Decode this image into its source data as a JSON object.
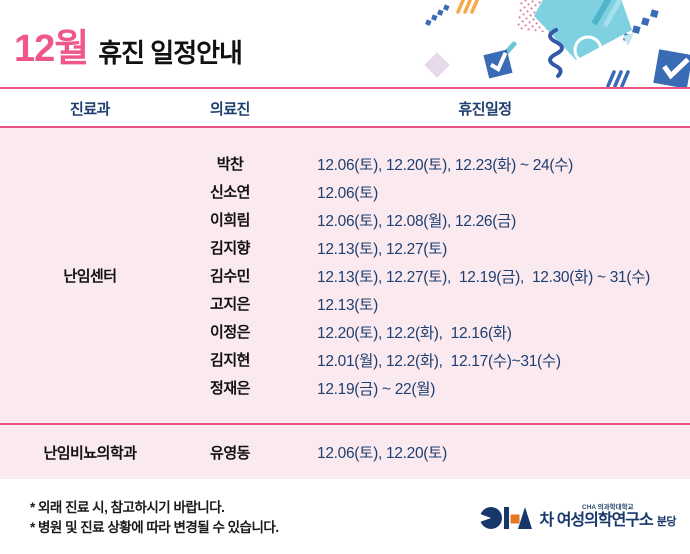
{
  "title": {
    "month": "12월",
    "rest": "휴진 일정안내"
  },
  "table": {
    "headers": {
      "department": "진료과",
      "staff": "의료진",
      "schedule": "휴진일정"
    },
    "sections": [
      {
        "department": "난임센터",
        "rows": [
          {
            "doctor": "박찬",
            "schedule": "12.06(토), 12.20(토), 12.23(화) ~ 24(수)"
          },
          {
            "doctor": "신소연",
            "schedule": "12.06(토)"
          },
          {
            "doctor": "이희림",
            "schedule": "12.06(토), 12.08(월), 12.26(금)"
          },
          {
            "doctor": "김지향",
            "schedule": "12.13(토), 12.27(토)"
          },
          {
            "doctor": "김수민",
            "schedule": "12.13(토), 12.27(토),  12.19(금),  12.30(화) ~ 31(수)"
          },
          {
            "doctor": "고지은",
            "schedule": "12.13(토)"
          },
          {
            "doctor": "이정은",
            "schedule": "12.20(토), 12.2(화),  12.16(화)"
          },
          {
            "doctor": "김지현",
            "schedule": "12.01(월), 12.2(화),  12.17(수)~31(수)"
          },
          {
            "doctor": "정재은",
            "schedule": "12.19(금) ~ 22(월)"
          }
        ]
      },
      {
        "department": "난임비뇨의학과",
        "rows": [
          {
            "doctor": "유영동",
            "schedule": "12.06(토), 12.20(토)"
          }
        ]
      }
    ]
  },
  "footnotes": [
    "* 외래 진료 시, 참고하시기 바랍니다.",
    "* 병원 및 진료 상황에 따라 변경될 수 있습니다."
  ],
  "logo": {
    "small_text": "CHA 의과학대학교",
    "main_text": "차 여성의학연구소",
    "suffix": "분당"
  },
  "colors": {
    "accent_pink": "#EF578B",
    "rule_pink": "#E9517F",
    "band_pink": "#FBE9F0",
    "navy_text": "#1E3F6F",
    "deco_blue": "#3A6BB5",
    "deco_cyan": "#7FD1E2",
    "deco_orange": "#F5A94B",
    "logo_navy": "#17376B",
    "logo_orange": "#E87722"
  }
}
